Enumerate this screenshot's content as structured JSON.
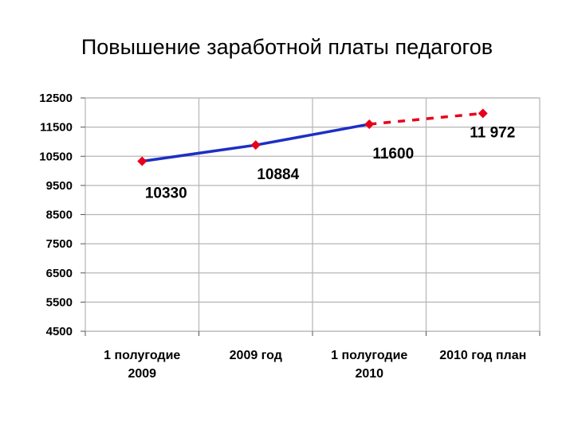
{
  "title": "Повышение заработной платы педагогов",
  "colors": {
    "actual_line": "#1c2fc4",
    "plan_line": "#e8001a",
    "marker": "#e8001a",
    "grid": "#b5b5b5"
  },
  "chart_data": {
    "type": "line",
    "title": "Повышение заработной платы педагогов",
    "xlabel": "",
    "ylabel": "",
    "categories": [
      [
        "1 полугодие",
        "2009"
      ],
      [
        "2009 год"
      ],
      [
        "1 полугодие",
        "2010"
      ],
      [
        "2010 год план"
      ]
    ],
    "series": [
      {
        "style": "solid",
        "color": "#1c2fc4",
        "points": [
          {
            "x": 0,
            "y": 10330
          },
          {
            "x": 1,
            "y": 10884
          },
          {
            "x": 2,
            "y": 11600
          }
        ]
      },
      {
        "style": "dashed",
        "color": "#e8001a",
        "points": [
          {
            "x": 2,
            "y": 11600
          },
          {
            "x": 3,
            "y": 11972
          }
        ]
      }
    ],
    "data_labels": [
      "10330",
      "10884",
      "11600",
      "11 972"
    ],
    "yticks": [
      12500,
      11500,
      10500,
      9500,
      8500,
      7500,
      6500,
      5500,
      4500
    ],
    "ylim": [
      4500,
      12500
    ],
    "grid": true,
    "legend": "none"
  }
}
